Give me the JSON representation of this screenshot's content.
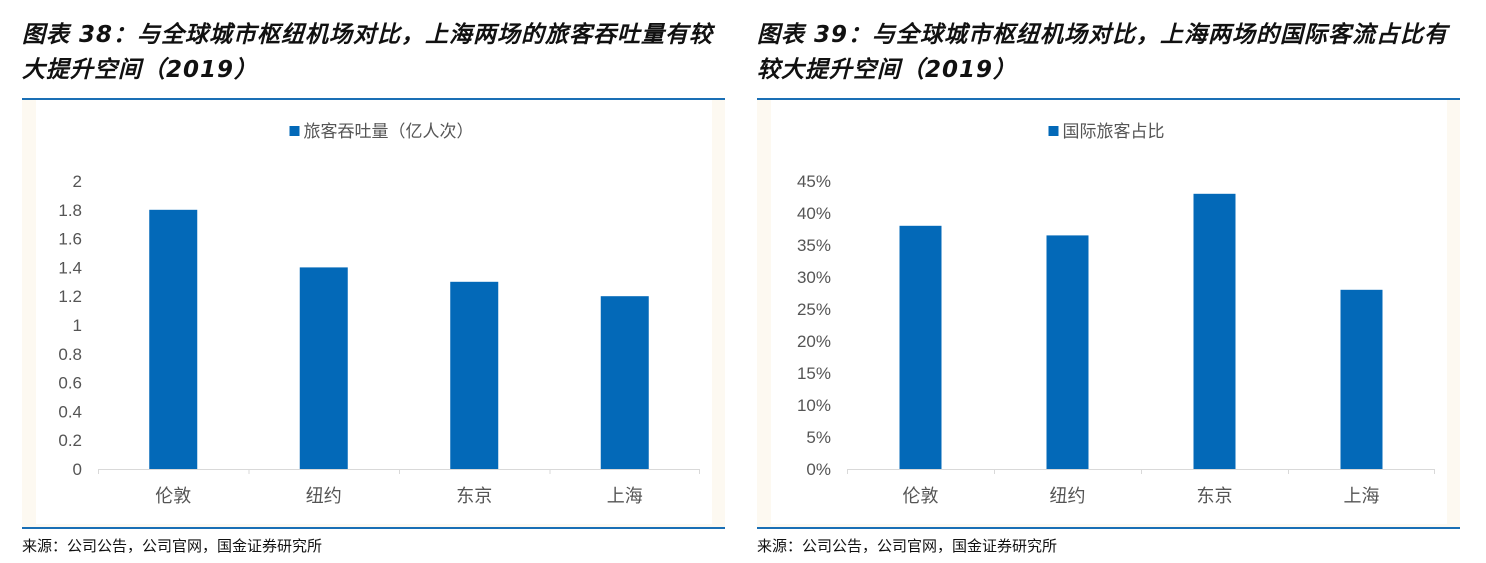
{
  "source": "来源：公司公告，公司官网，国金证券研究所",
  "chart_data": [
    {
      "type": "bar",
      "title": "图表 38：与全球城市枢纽机场对比，上海两场的旅客吞吐量有较大提升空间（2019）",
      "categories": [
        "伦敦",
        "纽约",
        "东京",
        "上海"
      ],
      "series": [
        {
          "name": "旅客吞吐量（亿人次）",
          "values": [
            1.8,
            1.4,
            1.3,
            1.2
          ]
        }
      ],
      "ylim": [
        0,
        2
      ],
      "yticks": [
        "0",
        "0.2",
        "0.4",
        "0.6",
        "0.8",
        "1",
        "1.2",
        "1.4",
        "1.6",
        "1.8",
        "2"
      ],
      "legend": "top",
      "grid": false,
      "color": "#0369b8"
    },
    {
      "type": "bar",
      "title": "图表 39：与全球城市枢纽机场对比，上海两场的国际客流占比有较大提升空间（2019）",
      "categories": [
        "伦敦",
        "纽约",
        "东京",
        "上海"
      ],
      "series": [
        {
          "name": "国际旅客占比",
          "values": [
            38,
            36.5,
            43,
            28
          ]
        }
      ],
      "ylim": [
        0,
        45
      ],
      "yticks": [
        "0%",
        "5%",
        "10%",
        "15%",
        "20%",
        "25%",
        "30%",
        "35%",
        "40%",
        "45%"
      ],
      "legend": "top",
      "grid": false,
      "color": "#0369b8"
    }
  ]
}
